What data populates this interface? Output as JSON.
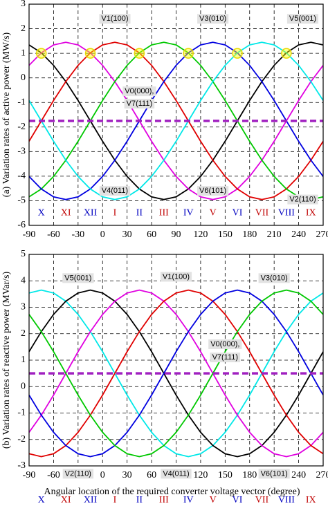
{
  "chart_data": [
    {
      "type": "line",
      "ylabel": "(a) Variation rates of active power (MW/s)",
      "x": [
        -90,
        -75,
        -60,
        -45,
        -30,
        -15,
        0,
        15,
        30,
        45,
        60,
        75,
        90,
        105,
        120,
        135,
        150,
        165,
        180,
        195,
        210,
        225,
        240,
        255,
        270
      ],
      "xlim": [
        -90,
        270
      ],
      "xticks": [
        -90,
        -60,
        -30,
        0,
        30,
        60,
        90,
        120,
        150,
        180,
        210,
        240,
        270
      ],
      "ylim": [
        -6,
        3
      ],
      "yticks": [
        -6,
        -5,
        -4,
        -3,
        -2,
        -1,
        0,
        1,
        2,
        3
      ],
      "grid": true,
      "series": [
        {
          "color": "#000000",
          "values": [
            1.34,
            1.02,
            0.51,
            -0.15,
            -0.92,
            -1.75,
            -2.58,
            -3.35,
            -4.01,
            -4.52,
            -4.84,
            -4.95,
            -4.84,
            -4.52,
            -4.01,
            -3.35,
            -2.58,
            -1.75,
            -0.92,
            -0.15,
            0.51,
            1.02,
            1.34,
            1.45,
            1.34
          ]
        },
        {
          "color": "#e000e0",
          "values": [
            0.51,
            1.02,
            1.34,
            1.45,
            1.34,
            1.02,
            0.51,
            -0.15,
            -0.92,
            -1.75,
            -2.58,
            -3.35,
            -4.01,
            -4.52,
            -4.84,
            -4.95,
            -4.84,
            -4.52,
            -4.01,
            -3.35,
            -2.58,
            -1.75,
            -0.92,
            -0.15,
            0.51
          ]
        },
        {
          "color": "#e00000",
          "values": [
            -2.58,
            -1.75,
            -0.92,
            -0.15,
            0.51,
            1.02,
            1.34,
            1.45,
            1.34,
            1.02,
            0.51,
            -0.15,
            -0.92,
            -1.75,
            -2.58,
            -3.35,
            -4.01,
            -4.52,
            -4.84,
            -4.95,
            -4.84,
            -4.52,
            -4.01,
            -3.35,
            -2.58
          ]
        },
        {
          "color": "#00c800",
          "values": [
            -4.84,
            -4.52,
            -4.01,
            -3.35,
            -2.58,
            -1.75,
            -0.92,
            -0.15,
            0.51,
            1.02,
            1.34,
            1.45,
            1.34,
            1.02,
            0.51,
            -0.15,
            -0.92,
            -1.75,
            -2.58,
            -3.35,
            -4.01,
            -4.52,
            -4.84,
            -4.95,
            -4.84
          ]
        },
        {
          "color": "#0000e0",
          "values": [
            -4.01,
            -4.52,
            -4.84,
            -4.95,
            -4.84,
            -4.52,
            -4.01,
            -3.35,
            -2.58,
            -1.75,
            -0.92,
            -0.15,
            0.51,
            1.02,
            1.34,
            1.45,
            1.34,
            1.02,
            0.51,
            -0.15,
            -0.92,
            -1.75,
            -2.58,
            -3.35,
            -4.01
          ]
        },
        {
          "color": "#00e8e8",
          "values": [
            -0.92,
            -1.75,
            -2.58,
            -3.35,
            -4.01,
            -4.52,
            -4.84,
            -4.95,
            -4.84,
            -4.52,
            -4.01,
            -3.35,
            -2.58,
            -1.75,
            -0.92,
            -0.15,
            0.51,
            1.02,
            1.34,
            1.45,
            1.34,
            1.02,
            0.51,
            -0.15,
            -0.92
          ]
        }
      ],
      "reference_line": {
        "value": -1.75,
        "color": "#a020c0"
      },
      "highlight_points": {
        "x": [
          -75,
          -15,
          45,
          105,
          165,
          225
        ],
        "y": [
          1,
          1,
          1,
          1,
          1,
          1
        ]
      },
      "annotations": [
        {
          "text": "V1(100)",
          "x": 15,
          "y": 2.4
        },
        {
          "text": "V3(010)",
          "x": 135,
          "y": 2.4
        },
        {
          "text": "V5(001)",
          "x": 245,
          "y": 2.4
        },
        {
          "text": "V0(000),",
          "x": 45,
          "y": -0.55
        },
        {
          "text": "V7(111)",
          "x": 45,
          "y": -1.05
        },
        {
          "text": "V4(011)",
          "x": 15,
          "y": -4.6
        },
        {
          "text": "V6(101)",
          "x": 135,
          "y": -4.6
        },
        {
          "text": "V2(110)",
          "x": 245,
          "y": -4.95
        }
      ],
      "sector_labels": [
        {
          "text": "X",
          "x": -75,
          "y": -5.5,
          "color": "#0000c0"
        },
        {
          "text": "XI",
          "x": -45,
          "y": -5.5,
          "color": "#c00000"
        },
        {
          "text": "XII",
          "x": -15,
          "y": -5.5,
          "color": "#0000c0"
        },
        {
          "text": "I",
          "x": 15,
          "y": -5.5,
          "color": "#c00000"
        },
        {
          "text": "II",
          "x": 45,
          "y": -5.5,
          "color": "#0000c0"
        },
        {
          "text": "III",
          "x": 75,
          "y": -5.5,
          "color": "#c00000"
        },
        {
          "text": "IV",
          "x": 105,
          "y": -5.5,
          "color": "#0000c0"
        },
        {
          "text": "V",
          "x": 135,
          "y": -5.5,
          "color": "#c00000"
        },
        {
          "text": "VI",
          "x": 165,
          "y": -5.5,
          "color": "#0000c0"
        },
        {
          "text": "VII",
          "x": 195,
          "y": -5.5,
          "color": "#c00000"
        },
        {
          "text": "VIII",
          "x": 225,
          "y": -5.5,
          "color": "#0000c0"
        },
        {
          "text": "IX",
          "x": 255,
          "y": -5.5,
          "color": "#c00000"
        }
      ]
    },
    {
      "type": "line",
      "ylabel": "(b) Variation rates of reactive power (MVar/s)",
      "xlabel": "Angular location of the required converter voltage vector (degree)",
      "x": [
        -90,
        -75,
        -60,
        -45,
        -30,
        -15,
        0,
        15,
        30,
        45,
        60,
        75,
        90,
        105,
        120,
        135,
        150,
        165,
        180,
        195,
        210,
        225,
        240,
        255,
        270
      ],
      "xlim": [
        -90,
        270
      ],
      "xticks": [
        -90,
        -60,
        -30,
        0,
        30,
        60,
        90,
        120,
        150,
        180,
        210,
        240,
        270
      ],
      "ylim": [
        -3,
        5
      ],
      "yticks": [
        -3,
        -2,
        -1,
        0,
        1,
        2,
        3,
        4,
        5
      ],
      "grid": true,
      "series": [
        {
          "color": "#00e8e8",
          "values": [
            3.54,
            3.65,
            3.54,
            3.23,
            2.73,
            2.08,
            1.32,
            0.5,
            -0.32,
            -1.08,
            -1.73,
            -2.23,
            -2.54,
            -2.65,
            -2.54,
            -2.23,
            -1.73,
            -1.08,
            -0.32,
            0.5,
            1.32,
            2.08,
            2.73,
            3.23,
            3.54
          ]
        },
        {
          "color": "#000000",
          "values": [
            1.32,
            2.08,
            2.73,
            3.23,
            3.54,
            3.65,
            3.54,
            3.23,
            2.73,
            2.08,
            1.32,
            0.5,
            -0.32,
            -1.08,
            -1.73,
            -2.23,
            -2.54,
            -2.65,
            -2.54,
            -2.23,
            -1.73,
            -1.08,
            -0.32,
            0.5,
            1.32
          ]
        },
        {
          "color": "#e000e0",
          "values": [
            -1.73,
            -1.08,
            -0.32,
            0.5,
            1.32,
            2.08,
            2.73,
            3.23,
            3.54,
            3.65,
            3.54,
            3.23,
            2.73,
            2.08,
            1.32,
            0.5,
            -0.32,
            -1.08,
            -1.73,
            -2.23,
            -2.54,
            -2.65,
            -2.54,
            -2.23,
            -1.73
          ]
        },
        {
          "color": "#e00000",
          "values": [
            -2.54,
            -2.65,
            -2.54,
            -2.23,
            -1.73,
            -1.08,
            -0.32,
            0.5,
            1.32,
            2.08,
            2.73,
            3.23,
            3.54,
            3.65,
            3.54,
            3.23,
            2.73,
            2.08,
            1.32,
            0.5,
            -0.32,
            -1.08,
            -1.73,
            -2.23,
            -2.54
          ]
        },
        {
          "color": "#0000e0",
          "values": [
            -0.32,
            -1.08,
            -1.73,
            -2.23,
            -2.54,
            -2.65,
            -2.54,
            -2.23,
            -1.73,
            -1.08,
            -0.32,
            0.5,
            1.32,
            2.08,
            2.73,
            3.23,
            3.54,
            3.65,
            3.54,
            3.23,
            2.73,
            2.08,
            1.32,
            0.5,
            -0.32
          ]
        },
        {
          "color": "#00c800",
          "values": [
            2.73,
            2.08,
            1.32,
            0.5,
            -0.32,
            -1.08,
            -1.73,
            -2.23,
            -2.54,
            -2.65,
            -2.54,
            -2.23,
            -1.73,
            -1.08,
            -0.32,
            0.5,
            1.32,
            2.08,
            2.73,
            3.23,
            3.54,
            3.65,
            3.54,
            3.23,
            2.73
          ]
        }
      ],
      "reference_line": {
        "value": 0.5,
        "color": "#a020c0"
      },
      "annotations": [
        {
          "text": "V5(001)",
          "x": -30,
          "y": 4.1
        },
        {
          "text": "V1(100)",
          "x": 90,
          "y": 4.15
        },
        {
          "text": "V3(010)",
          "x": 210,
          "y": 4.1
        },
        {
          "text": "V0(000),",
          "x": 150,
          "y": 1.6
        },
        {
          "text": "V7(111)",
          "x": 150,
          "y": 1.1
        },
        {
          "text": "V2(110)",
          "x": -30,
          "y": -3.3
        },
        {
          "text": "V4(011)",
          "x": 90,
          "y": -3.3
        },
        {
          "text": "V6(101)",
          "x": 210,
          "y": -3.3
        }
      ],
      "sector_labels": [
        {
          "text": "X",
          "x": -75,
          "y": -4.3,
          "color": "#0000c0"
        },
        {
          "text": "XI",
          "x": -45,
          "y": -4.3,
          "color": "#c00000"
        },
        {
          "text": "XII",
          "x": -15,
          "y": -4.3,
          "color": "#0000c0"
        },
        {
          "text": "I",
          "x": 15,
          "y": -4.3,
          "color": "#c00000"
        },
        {
          "text": "II",
          "x": 45,
          "y": -4.3,
          "color": "#0000c0"
        },
        {
          "text": "III",
          "x": 75,
          "y": -4.3,
          "color": "#c00000"
        },
        {
          "text": "IV",
          "x": 105,
          "y": -4.3,
          "color": "#0000c0"
        },
        {
          "text": "V",
          "x": 135,
          "y": -4.3,
          "color": "#c00000"
        },
        {
          "text": "VI",
          "x": 165,
          "y": -4.3,
          "color": "#0000c0"
        },
        {
          "text": "VII",
          "x": 195,
          "y": -4.3,
          "color": "#c00000"
        },
        {
          "text": "VIII",
          "x": 225,
          "y": -4.3,
          "color": "#0000c0"
        },
        {
          "text": "IX",
          "x": 255,
          "y": -4.3,
          "color": "#c00000"
        }
      ]
    }
  ]
}
